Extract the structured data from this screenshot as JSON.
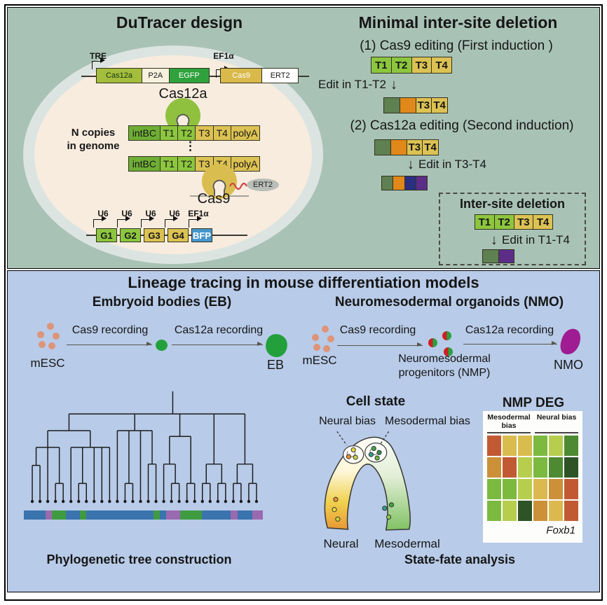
{
  "palette": {
    "top_panel_bg": "#a9c2b6",
    "bottom_panel_bg": "#b8cbe8",
    "cell_outer": "#dce4e1",
    "cell_inner": "#f8ecdf",
    "cas12a_blob": "#8fc13f",
    "cas9_blob": "#d9bd4f"
  },
  "icons": {
    "down_arrow": "↓",
    "vertical_dots": "⋮"
  },
  "dutracer": {
    "title": "DuTracer design",
    "tre": "TRE",
    "ef1a": "EF1α",
    "construct_cas12a": [
      {
        "label": "Cas12a",
        "bg": "#a4bd3c",
        "fg": "#14380f",
        "w": 1.7
      },
      {
        "label": "P2A",
        "bg": "#f7f1de",
        "w": 1
      },
      {
        "label": "EGFP",
        "bg": "#2fa23e",
        "fg": "#ffffff",
        "w": 1.5
      }
    ],
    "construct_cas9": [
      {
        "label": "Cas9",
        "bg": "#d8b94a",
        "fg": "#ffffff",
        "w": 1.15
      },
      {
        "label": "ERT2",
        "bg": "#ffffff",
        "w": 1
      }
    ],
    "cas12a_label": "Cas12a",
    "n_copies_line1": "N copies",
    "n_copies_line2": "in genome",
    "cassette": [
      {
        "label": "intBC",
        "bg": "#6fae35",
        "w": 1.8
      },
      {
        "label": "T1",
        "bg": "#8cc63e",
        "w": 1
      },
      {
        "label": "T2",
        "bg": "#8cc63e",
        "w": 1
      },
      {
        "label": "T3",
        "bg": "#dcc253",
        "w": 1
      },
      {
        "label": "T4",
        "bg": "#dcc253",
        "w": 1
      },
      {
        "label": "polyA",
        "bg": "#dcc253",
        "w": 1.65
      }
    ],
    "cas9_label": "Cas9",
    "ert2_label": "ERT2",
    "guide_promoters": [
      "U6",
      "U6",
      "U6",
      "U6",
      "EF1α"
    ],
    "guides": [
      {
        "label": "G1",
        "bg": "#8cc63e"
      },
      {
        "label": "G2",
        "bg": "#8cc63e"
      },
      {
        "label": "G3",
        "bg": "#dcc253"
      },
      {
        "label": "G4",
        "bg": "#dcc253"
      },
      {
        "label": "BFP",
        "bg": "#4596cc",
        "fg": "#ffffff"
      }
    ]
  },
  "deletion": {
    "title": "Minimal inter-site deletion",
    "step1": "(1) Cas9 editing (First induction )",
    "edit1": "Edit in T1-T2",
    "step2": "(2) Cas12a editing (Second induction)",
    "edit2": "Edit in T3-T4",
    "inset_title": "Inter-site deletion",
    "inset_edit": "Edit in T1-T4",
    "bar_initial": [
      {
        "label": "T1",
        "bg": "#8cc63e",
        "w": 1
      },
      {
        "label": "T2",
        "bg": "#8cc63e",
        "w": 1
      },
      {
        "label": "T3",
        "bg": "#dcc253",
        "w": 1
      },
      {
        "label": "T4",
        "bg": "#dcc253",
        "w": 1
      }
    ],
    "bar_after_cas9": [
      {
        "label": "",
        "bg": "#5f8050",
        "w": 1
      },
      {
        "label": "",
        "bg": "#e0881a",
        "w": 1
      },
      {
        "label": "T3",
        "bg": "#dcc253",
        "w": 1
      },
      {
        "label": "T4",
        "bg": "#dcc253",
        "w": 1
      }
    ],
    "bar_before_cas12a": [
      {
        "label": "",
        "bg": "#5f8050",
        "w": 1
      },
      {
        "label": "",
        "bg": "#e0881a",
        "w": 1
      },
      {
        "label": "T3",
        "bg": "#dcc253",
        "w": 1
      },
      {
        "label": "T4",
        "bg": "#dcc253",
        "w": 1
      }
    ],
    "bar_after_cas12a": [
      {
        "label": "",
        "bg": "#5f8050",
        "w": 1
      },
      {
        "label": "",
        "bg": "#e0881a",
        "w": 1
      },
      {
        "label": "",
        "bg": "#2a2f82",
        "w": 1
      },
      {
        "label": "",
        "bg": "#5c2d88",
        "w": 1
      }
    ],
    "inset_bar_initial": [
      {
        "label": "T1",
        "bg": "#8cc63e",
        "w": 1
      },
      {
        "label": "T2",
        "bg": "#8cc63e",
        "w": 1
      },
      {
        "label": "T3",
        "bg": "#dcc253",
        "w": 1
      },
      {
        "label": "T4",
        "bg": "#dcc253",
        "w": 1
      }
    ],
    "inset_bar_after": [
      {
        "label": "",
        "bg": "#5f8050",
        "w": 1
      },
      {
        "label": "",
        "bg": "#5c2d88",
        "w": 1
      }
    ]
  },
  "lineage": {
    "title": "Lineage tracing in mouse differentiation models",
    "eb": {
      "heading": "Embryoid bodies (EB)",
      "start_label": "mESC",
      "arrow1_label": "Cas9 recording",
      "arrow2_label": "Cas12a recording",
      "end_label": "EB"
    },
    "nmo": {
      "heading": "Neuromesodermal organoids (NMO)",
      "start_label": "mESC",
      "arrow1_label": "Cas9 recording",
      "mid_label1": "Neuromesodermal",
      "mid_label2": "progenitors (NMP)",
      "arrow2_label": "Cas12a recording",
      "end_label": "NMO"
    },
    "tree_caption": "Phylogenetic tree construction",
    "tree_bar": [
      {
        "c": "#3a73ae",
        "f": 9
      },
      {
        "c": "#9a6ab0",
        "f": 2.6
      },
      {
        "c": "#3f9b42",
        "f": 5.8
      },
      {
        "c": "#3a73ae",
        "f": 6
      },
      {
        "c": "#3f9b42",
        "f": 2.6
      },
      {
        "c": "#3a73ae",
        "f": 28
      },
      {
        "c": "#3f9b42",
        "f": 2.6
      },
      {
        "c": "#3a73ae",
        "f": 2.6
      },
      {
        "c": "#9a6ab0",
        "f": 5.8
      },
      {
        "c": "#3f9b42",
        "f": 9
      },
      {
        "c": "#3a73ae",
        "f": 12
      },
      {
        "c": "#9a6ab0",
        "f": 3
      },
      {
        "c": "#3a73ae",
        "f": 6
      },
      {
        "c": "#9a6ab0",
        "f": 4.4
      }
    ]
  },
  "state_fate": {
    "cell_state_title": "Cell state",
    "neural_bias": "Neural bias",
    "mesodermal_bias": "Mesodermal bias",
    "neural": "Neural",
    "mesodermal": "Mesodermal",
    "caption": "State-fate analysis",
    "deg_title": "NMP DEG",
    "deg_col_group1": "Mesodermal bias",
    "deg_col_group2": "Neural bias",
    "deg_gene": "Foxb1",
    "heatmap_rows": [
      [
        "#c15a33",
        "#d9bc4e",
        "#d9bc4e",
        "#7cb93f",
        "#b7cd4e",
        "#4e8a31"
      ],
      [
        "#cc9038",
        "#c15a33",
        "#b7cd4e",
        "#7cb93f",
        "#4e8a31",
        "#2d5326"
      ],
      [
        "#7cb93f",
        "#7cb93f",
        "#b7cd4e",
        "#dcb94e",
        "#cc9038",
        "#c15a33"
      ],
      [
        "#7cb93f",
        "#b7cd4e",
        "#2d5326",
        "#cc9038",
        "#dcb94e",
        "#c15a33"
      ]
    ]
  }
}
